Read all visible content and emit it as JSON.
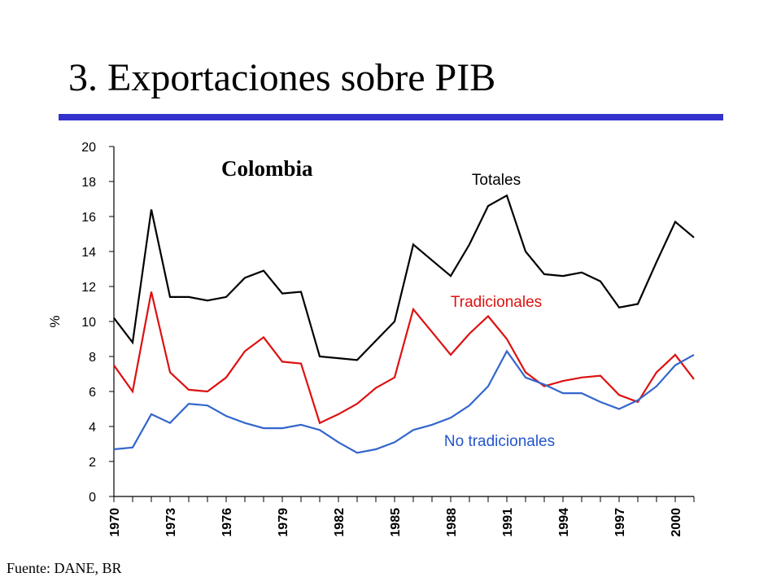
{
  "slide": {
    "title": "3. Exportaciones sobre PIB",
    "source": "Fuente: DANE, BR",
    "accent_color": "#3333cc"
  },
  "chart_data": {
    "type": "line",
    "title": "Colombia",
    "xlabel": "",
    "ylabel": "%",
    "ylim": [
      0,
      20
    ],
    "yticks": [
      "0",
      "2",
      "4",
      "6",
      "8",
      "10",
      "12",
      "14",
      "16",
      "18",
      "20"
    ],
    "x": [
      1970,
      1971,
      1972,
      1973,
      1974,
      1975,
      1976,
      1977,
      1978,
      1979,
      1980,
      1981,
      1982,
      1983,
      1984,
      1985,
      1986,
      1987,
      1988,
      1989,
      1990,
      1991,
      1992,
      1993,
      1994,
      1995,
      1996,
      1997,
      1998,
      1999,
      2000,
      2001
    ],
    "xtick_labels": [
      "1970",
      "1973",
      "1976",
      "1979",
      "1982",
      "1985",
      "1988",
      "1991",
      "1994",
      "1997",
      "2000"
    ],
    "grid": false,
    "series": [
      {
        "name": "Totales",
        "color": "#000000",
        "values": [
          10.2,
          8.8,
          16.4,
          11.4,
          11.4,
          11.2,
          11.4,
          12.5,
          12.9,
          11.6,
          11.7,
          8.0,
          7.9,
          7.8,
          8.9,
          10.0,
          14.4,
          13.5,
          12.6,
          14.4,
          16.6,
          17.2,
          14.0,
          12.7,
          12.6,
          12.8,
          12.3,
          10.8,
          11.0,
          13.4,
          15.7,
          14.8
        ]
      },
      {
        "name": "Tradicionales",
        "color": "#dd1111",
        "values": [
          7.5,
          6.0,
          11.7,
          7.1,
          6.1,
          6.0,
          6.8,
          8.3,
          9.1,
          7.7,
          7.6,
          4.2,
          4.7,
          5.3,
          6.2,
          6.8,
          10.7,
          9.4,
          8.1,
          9.3,
          10.3,
          9.0,
          7.1,
          6.3,
          6.6,
          6.8,
          6.9,
          5.8,
          5.4,
          7.1,
          8.1,
          6.7
        ]
      },
      {
        "name": "No tradicionales",
        "color": "#3366cc",
        "values": [
          2.7,
          2.8,
          4.7,
          4.2,
          5.3,
          5.2,
          4.6,
          4.2,
          3.9,
          3.9,
          4.1,
          3.8,
          3.1,
          2.5,
          2.7,
          3.1,
          3.8,
          4.1,
          4.5,
          5.2,
          6.3,
          8.3,
          6.8,
          6.4,
          5.9,
          5.9,
          5.4,
          5.0,
          5.5,
          6.3,
          7.5,
          8.1
        ]
      }
    ]
  }
}
